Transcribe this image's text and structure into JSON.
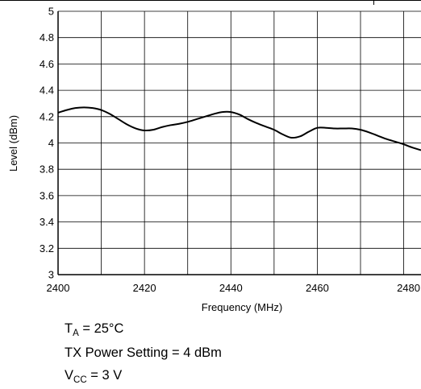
{
  "chart_data": {
    "type": "line",
    "title": "",
    "xlabel": "Frequency (MHz)",
    "ylabel": "Level (dBm)",
    "xlim": [
      2400,
      2484
    ],
    "ylim": [
      3,
      5
    ],
    "x_ticks": [
      "2400",
      "2420",
      "2440",
      "2460",
      "2480"
    ],
    "y_ticks": [
      "3",
      "3.2",
      "3.4",
      "3.6",
      "3.8",
      "4",
      "4.2",
      "4.4",
      "4.6",
      "4.8",
      "5"
    ],
    "grid": true,
    "series": [
      {
        "x": [
          2400,
          2402,
          2404,
          2406,
          2408,
          2410,
          2412,
          2414,
          2416,
          2418,
          2420,
          2422,
          2424,
          2426,
          2428,
          2430,
          2432,
          2434,
          2436,
          2438,
          2440,
          2442,
          2444,
          2446,
          2448,
          2450,
          2452,
          2454,
          2456,
          2458,
          2460,
          2462,
          2464,
          2466,
          2468,
          2470,
          2472,
          2474,
          2476,
          2478,
          2480,
          2482,
          2484
        ],
        "y": [
          4.23,
          4.25,
          4.265,
          4.27,
          4.265,
          4.25,
          4.22,
          4.18,
          4.14,
          4.11,
          4.095,
          4.1,
          4.12,
          4.135,
          4.145,
          4.16,
          4.18,
          4.2,
          4.22,
          4.235,
          4.235,
          4.215,
          4.18,
          4.15,
          4.125,
          4.1,
          4.065,
          4.04,
          4.05,
          4.085,
          4.115,
          4.115,
          4.11,
          4.11,
          4.11,
          4.1,
          4.08,
          4.055,
          4.03,
          4.01,
          3.99,
          3.965,
          3.945
        ]
      }
    ]
  },
  "conditions": {
    "ta_main": "T",
    "ta_sub": "A",
    "ta_value": " = 25°C",
    "tx_power": "TX Power Setting = 4 dBm",
    "vcc_main": "V",
    "vcc_sub": "CC",
    "vcc_value": " = 3 V"
  },
  "colors": {
    "line": "#000000",
    "grid": "#000000"
  }
}
